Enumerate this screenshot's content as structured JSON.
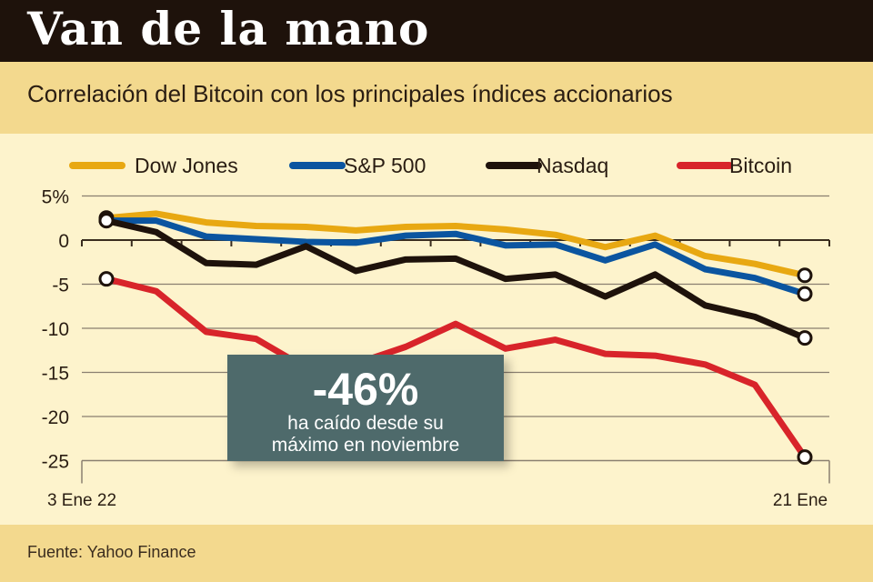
{
  "header": {
    "title": "Van de la mano",
    "subtitle": "Correlación del Bitcoin con los principales índices accionarios"
  },
  "footer": {
    "source": "Fuente: Yahoo Finance"
  },
  "annotation": {
    "value": "-46%",
    "line1": "ha caído desde su",
    "line2": "máximo en noviembre",
    "color": "#4e6a6b"
  },
  "chart_data": {
    "type": "line",
    "title": "",
    "xlabel": "",
    "ylabel": "",
    "ylim": [
      -25,
      5
    ],
    "yticks": [
      "5%",
      "0",
      "-5",
      "-10",
      "-15",
      "-20",
      "-25"
    ],
    "ytick_values": [
      5,
      0,
      -5,
      -10,
      -15,
      -20,
      -25
    ],
    "xtick_labels": [
      "3 Ene 22",
      "21 Ene"
    ],
    "grid": true,
    "legend": "top",
    "x": [
      "3 Ene 22",
      "",
      "",
      "",
      "",
      "",
      "",
      "",
      "",
      "",
      "",
      "",
      "",
      "",
      "21 Ene"
    ],
    "series": [
      {
        "name": "Dow Jones",
        "color": "#e8a812",
        "values": [
          2.5,
          3.0,
          2.0,
          1.6,
          1.5,
          1.1,
          1.5,
          1.6,
          1.2,
          0.6,
          -0.8,
          0.5,
          -1.8,
          -2.7,
          -4.0
        ]
      },
      {
        "name": "S&P  500",
        "color": "#0b55a0",
        "values": [
          2.2,
          2.2,
          0.4,
          0.1,
          -0.2,
          -0.3,
          0.5,
          0.7,
          -0.6,
          -0.5,
          -2.3,
          -0.5,
          -3.3,
          -4.3,
          -6.1
        ]
      },
      {
        "name": "Nasdaq",
        "color": "#1e120b",
        "values": [
          2.2,
          0.9,
          -2.6,
          -2.8,
          -0.7,
          -3.5,
          -2.2,
          -2.1,
          -4.4,
          -3.9,
          -6.4,
          -3.9,
          -7.4,
          -8.7,
          -11.1
        ]
      },
      {
        "name": "Bitcoin",
        "color": "#d8242a",
        "values": [
          -4.4,
          -5.8,
          -10.4,
          -11.2,
          -14.5,
          -14.0,
          -12.1,
          -9.5,
          -12.3,
          -11.3,
          -12.9,
          -13.1,
          -14.1,
          -16.4,
          -24.6
        ]
      }
    ]
  }
}
